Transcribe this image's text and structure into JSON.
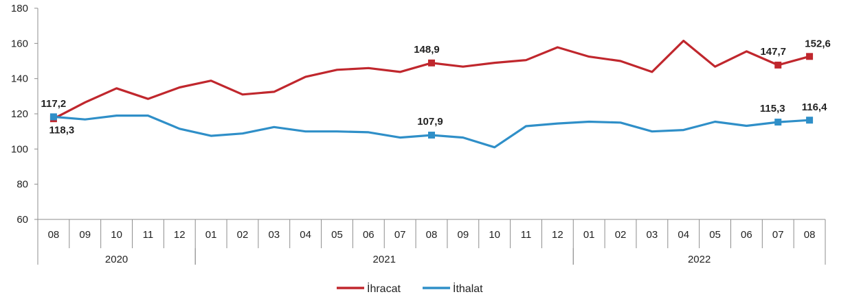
{
  "chart_data": {
    "type": "line",
    "title": "",
    "xlabel": "",
    "ylabel": "",
    "ylim": [
      60,
      180
    ],
    "yticks": [
      60,
      80,
      100,
      120,
      140,
      160,
      180
    ],
    "grid": false,
    "legend_position": "bottom",
    "categories": [
      "08",
      "09",
      "10",
      "11",
      "12",
      "01",
      "02",
      "03",
      "04",
      "05",
      "06",
      "07",
      "08",
      "09",
      "10",
      "11",
      "12",
      "01",
      "02",
      "03",
      "04",
      "05",
      "06",
      "07",
      "08"
    ],
    "year_groups": [
      {
        "label": "2020",
        "start": 0,
        "end": 4
      },
      {
        "label": "2021",
        "start": 5,
        "end": 16
      },
      {
        "label": "2022",
        "start": 17,
        "end": 24
      }
    ],
    "series": [
      {
        "name": "İhracat",
        "color": "#c0272d",
        "values": [
          117.2,
          126.5,
          134.5,
          128.5,
          135.0,
          138.8,
          131.0,
          132.5,
          141.0,
          145.0,
          146.0,
          143.8,
          148.9,
          146.8,
          149.0,
          150.5,
          157.8,
          152.5,
          150.0,
          143.8,
          161.5,
          146.8,
          155.5,
          147.7,
          152.6
        ],
        "marked_points": [
          {
            "index": 0,
            "label": "117,2"
          },
          {
            "index": 12,
            "label": "148,9"
          },
          {
            "index": 23,
            "label": "147,7"
          },
          {
            "index": 24,
            "label": "152,6"
          }
        ]
      },
      {
        "name": "İthalat",
        "color": "#2f8fc8",
        "values": [
          118.3,
          116.8,
          119.0,
          119.0,
          111.5,
          107.5,
          108.8,
          112.5,
          110.0,
          110.0,
          109.5,
          106.5,
          107.9,
          106.5,
          101.0,
          113.0,
          114.5,
          115.5,
          115.0,
          110.0,
          110.8,
          115.5,
          113.2,
          115.3,
          116.4
        ],
        "marked_points": [
          {
            "index": 0,
            "label": "118,3"
          },
          {
            "index": 12,
            "label": "107,9"
          },
          {
            "index": 23,
            "label": "115,3"
          },
          {
            "index": 24,
            "label": "116,4"
          }
        ]
      }
    ]
  }
}
